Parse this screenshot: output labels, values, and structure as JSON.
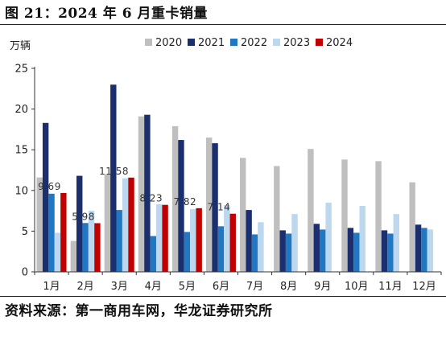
{
  "figure": {
    "title": "图 21：2024 年 6 月重卡销量",
    "source": "资料来源：第一商用车网，华龙证券研究所"
  },
  "chart_data": {
    "type": "bar",
    "ylabel": "万辆",
    "ylim": [
      0,
      25
    ],
    "yticks": [
      "0",
      "5",
      "10",
      "15",
      "20",
      "25"
    ],
    "categories": [
      "1月",
      "2月",
      "3月",
      "4月",
      "5月",
      "6月",
      "7月",
      "8月",
      "9月",
      "10月",
      "11月",
      "12月"
    ],
    "legend_position": "top-right",
    "grid": false,
    "series": [
      {
        "name": "2020",
        "color": "#bfbfbf",
        "values": [
          11.6,
          3.8,
          12.0,
          19.1,
          17.9,
          16.5,
          14.0,
          13.0,
          15.1,
          13.8,
          13.6,
          11.0
        ]
      },
      {
        "name": "2021",
        "color": "#1b2f6e",
        "values": [
          18.3,
          11.8,
          23.0,
          19.3,
          16.2,
          15.8,
          7.6,
          5.1,
          5.9,
          5.4,
          5.1,
          5.8
        ]
      },
      {
        "name": "2022",
        "color": "#1f78c1",
        "values": [
          9.6,
          6.0,
          7.6,
          4.4,
          4.9,
          5.6,
          4.6,
          4.7,
          5.2,
          4.8,
          4.7,
          5.4
        ]
      },
      {
        "name": "2023",
        "color": "#bcd7ee",
        "values": [
          4.8,
          7.5,
          11.5,
          8.3,
          7.7,
          8.2,
          6.1,
          7.1,
          8.5,
          8.1,
          7.1,
          5.2
        ]
      },
      {
        "name": "2024",
        "color": "#c00000",
        "values": [
          9.69,
          5.98,
          11.58,
          8.23,
          7.82,
          7.14,
          null,
          null,
          null,
          null,
          null,
          null
        ]
      }
    ],
    "data_labels": [
      {
        "category": "1月",
        "series": "2024",
        "text": "9.69"
      },
      {
        "category": "2月",
        "series": "2024",
        "text": "5.98"
      },
      {
        "category": "3月",
        "series": "2024",
        "text": "11.58"
      },
      {
        "category": "4月",
        "series": "2024",
        "text": "8.23"
      },
      {
        "category": "5月",
        "series": "2024",
        "text": "7.82"
      },
      {
        "category": "6月",
        "series": "2024",
        "text": "7.14"
      }
    ]
  }
}
